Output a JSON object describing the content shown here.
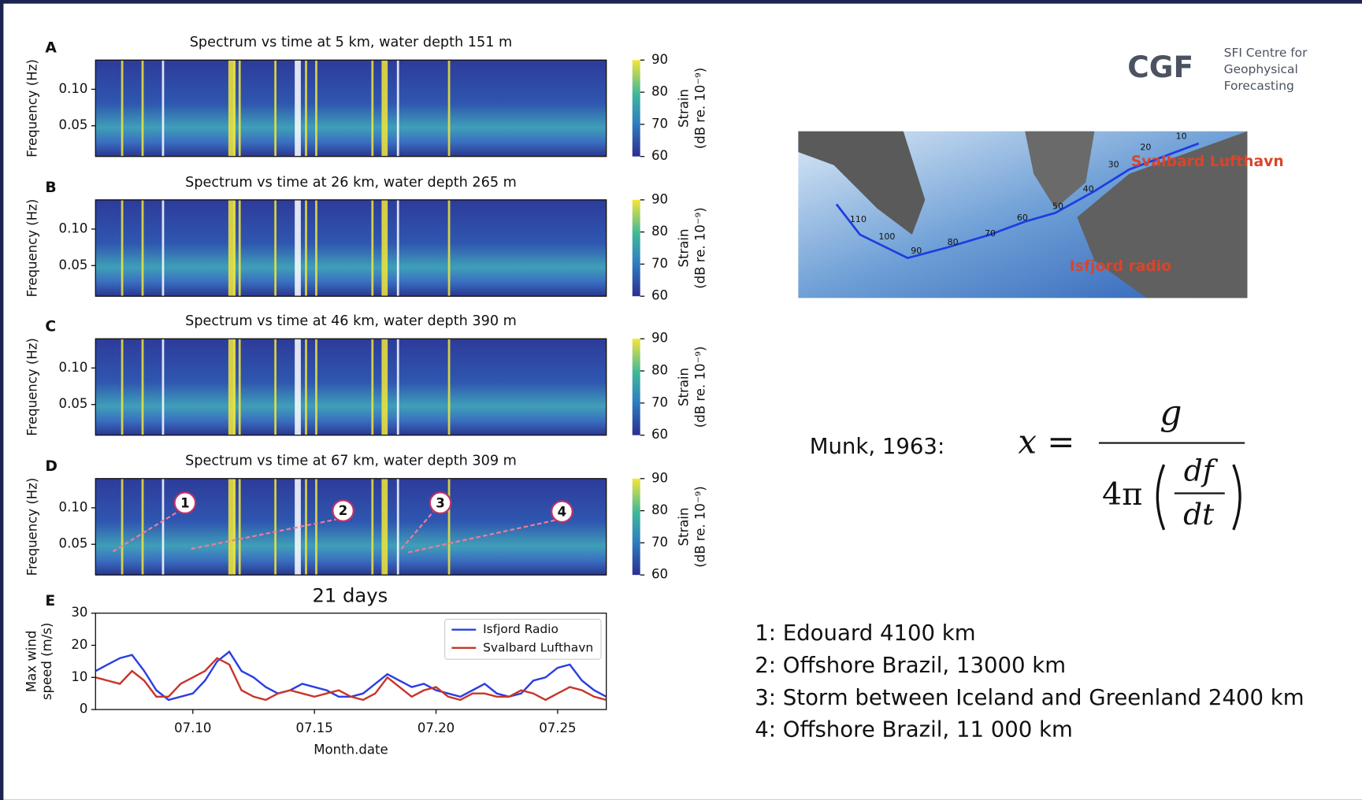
{
  "chart_data": [
    {
      "type": "heatmap",
      "label": "A",
      "title": "Spectrum vs time at 5 km, water depth 151 m",
      "ylabel": "Frequency (Hz)",
      "ylim": [
        0.008,
        0.14
      ],
      "yticks": [
        0.05,
        {
          "value": 0.1,
          "label": "0.10"
        }
      ],
      "colorbar": {
        "label": [
          "Strain",
          "(dB re. 10⁻⁹)"
        ],
        "lim": [
          60,
          90
        ],
        "ticks": [
          60,
          70,
          80,
          90
        ]
      }
    },
    {
      "type": "heatmap",
      "label": "B",
      "title": "Spectrum vs time at 26 km, water depth 265 m",
      "ylabel": "Frequency (Hz)",
      "ylim": [
        0.008,
        0.14
      ],
      "yticks": [
        0.05,
        {
          "value": 0.1,
          "label": "0.10"
        }
      ],
      "colorbar": {
        "label": [
          "Strain",
          "(dB re. 10⁻⁹)"
        ],
        "lim": [
          60,
          90
        ],
        "ticks": [
          60,
          70,
          80,
          90
        ]
      }
    },
    {
      "type": "heatmap",
      "label": "C",
      "title": "Spectrum vs time at 46 km, water depth 390 m",
      "ylabel": "Frequency (Hz)",
      "ylim": [
        0.008,
        0.14
      ],
      "yticks": [
        0.05,
        {
          "value": 0.1,
          "label": "0.10"
        }
      ],
      "colorbar": {
        "label": [
          "Strain",
          "(dB re. 10⁻⁹)"
        ],
        "lim": [
          60,
          90
        ],
        "ticks": [
          60,
          70,
          80,
          90
        ]
      }
    },
    {
      "type": "heatmap",
      "label": "D",
      "title": "Spectrum vs time at 67 km, water depth 309 m",
      "ylabel": "Frequency (Hz)",
      "ylim": [
        0.008,
        0.14
      ],
      "yticks": [
        0.05,
        {
          "value": 0.1,
          "label": "0.10"
        }
      ],
      "colorbar": {
        "label": [
          "Strain",
          "(dB re. 10⁻⁹)"
        ],
        "lim": [
          60,
          90
        ],
        "ticks": [
          60,
          70,
          80,
          90
        ]
      },
      "annotations": [
        "1",
        "2",
        "3",
        "4"
      ],
      "footnote": "21 days"
    },
    {
      "type": "line",
      "label": "E",
      "ylabel": [
        "Max wind",
        "speed (m/s)"
      ],
      "xlabel": "Month.date",
      "x": [
        6,
        6.5,
        7,
        7.5,
        8,
        8.5,
        9,
        9.5,
        10,
        10.5,
        11,
        11.5,
        12,
        12.5,
        13,
        13.5,
        14,
        14.5,
        15,
        15.5,
        16,
        16.5,
        17,
        17.5,
        18,
        18.5,
        19,
        19.5,
        20,
        20.5,
        21,
        21.5,
        22,
        22.5,
        23,
        23.5,
        24,
        24.5,
        25,
        25.5,
        26,
        26.5,
        27
      ],
      "xlim": [
        6,
        27
      ],
      "xticks": [
        {
          "value": 10,
          "label": "07.10"
        },
        {
          "value": 15,
          "label": "07.15"
        },
        {
          "value": 20,
          "label": "07.20"
        },
        {
          "value": 25,
          "label": "07.25"
        }
      ],
      "ylim": [
        0,
        30
      ],
      "yticks": [
        0,
        10,
        20,
        30
      ],
      "legend": "upper right",
      "series": [
        {
          "name": "Isfjord Radio",
          "color": "#2a3fe0",
          "values": [
            12,
            14,
            16,
            17,
            12,
            6,
            3,
            4,
            5,
            9,
            15,
            18,
            12,
            10,
            7,
            5,
            6,
            8,
            7,
            6,
            4,
            4,
            5,
            8,
            11,
            9,
            7,
            8,
            6,
            5,
            4,
            6,
            8,
            5,
            4,
            5,
            9,
            10,
            13,
            14,
            9,
            6,
            4
          ]
        },
        {
          "name": "Svalbard Lufthavn",
          "color": "#c8352a",
          "values": [
            10,
            9,
            8,
            12,
            9,
            4,
            4,
            8,
            10,
            12,
            16,
            14,
            6,
            4,
            3,
            5,
            6,
            5,
            4,
            5,
            6,
            4,
            3,
            5,
            10,
            7,
            4,
            6,
            7,
            4,
            3,
            5,
            5,
            4,
            4,
            6,
            5,
            3,
            5,
            7,
            6,
            4,
            3
          ]
        }
      ]
    }
  ],
  "header": {
    "logo": "CGF",
    "org": [
      "SFI Centre for",
      "Geophysical",
      "Forecasting"
    ]
  },
  "map": {
    "places": [
      "Svalbard Lufthavn",
      "Isfjord radio"
    ],
    "route_labels": [
      "10",
      "20",
      "30",
      "40",
      "50",
      "60",
      "70",
      "80",
      "90",
      "100",
      "110"
    ]
  },
  "formula": {
    "source": "Munk, 1963:",
    "lhs": "x =",
    "numerator": "g",
    "denominator": "4π",
    "inner_numerator": "df",
    "inner_denominator": "dt"
  },
  "events": [
    "1: Edouard 4100 km",
    "2: Offshore Brazil, 13000 km",
    "3: Storm between Iceland and Greenland 2400 km",
    "4: Offshore Brazil, 11 000 km"
  ]
}
